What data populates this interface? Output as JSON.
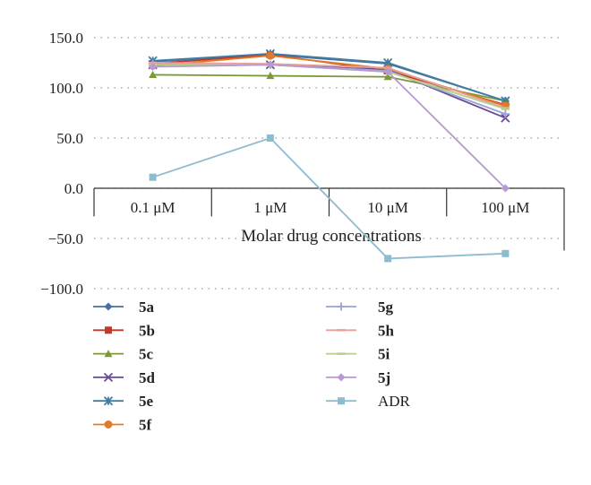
{
  "chart_data": {
    "type": "line",
    "categories": [
      "0.1 μM",
      "1 μM",
      "10 μM",
      "100 μM"
    ],
    "xlabel": "Molar drug concentrations",
    "ylabel": "",
    "ylim": [
      -100,
      150
    ],
    "yticks": [
      "150.0",
      "100.0",
      "50.0",
      "0.0",
      "−50.0",
      "−100.0"
    ],
    "grid": "horizontal dotted",
    "legend_position": "bottom",
    "series": [
      {
        "name": "5a",
        "bold": true,
        "marker": "diamond",
        "color": "#4a6fa5",
        "values": [
          126,
          133,
          124,
          87
        ]
      },
      {
        "name": "5b",
        "bold": true,
        "marker": "square",
        "color": "#c0392b",
        "values": [
          124,
          133,
          117,
          83
        ]
      },
      {
        "name": "5c",
        "bold": true,
        "marker": "triangle",
        "color": "#7a9a3a",
        "values": [
          113,
          112,
          111,
          87
        ]
      },
      {
        "name": "5d",
        "bold": true,
        "marker": "x",
        "color": "#6a4c93",
        "values": [
          123,
          123,
          118,
          70
        ]
      },
      {
        "name": "5e",
        "bold": true,
        "marker": "asterisk",
        "color": "#3e7ea1",
        "values": [
          127,
          134,
          125,
          87
        ]
      },
      {
        "name": "5f",
        "bold": true,
        "marker": "circle",
        "color": "#e07b2a",
        "values": [
          122,
          132,
          119,
          82
        ]
      },
      {
        "name": "5g",
        "bold": true,
        "marker": "plus",
        "color": "#9aa3d4",
        "values": [
          124,
          123,
          117,
          74
        ]
      },
      {
        "name": "5h",
        "bold": true,
        "marker": "dash",
        "color": "#e8a09a",
        "values": [
          125,
          124,
          120,
          80
        ]
      },
      {
        "name": "5i",
        "bold": true,
        "marker": "dash",
        "color": "#b5cf8a",
        "values": [
          123,
          123,
          116,
          79
        ]
      },
      {
        "name": "5j",
        "bold": true,
        "marker": "diamond",
        "color": "#b69ad0",
        "values": [
          121,
          123,
          116,
          0
        ]
      },
      {
        "name": "ADR",
        "bold": false,
        "marker": "square",
        "color": "#8cbcd0",
        "values": [
          11,
          50,
          -70,
          -65
        ]
      }
    ]
  }
}
